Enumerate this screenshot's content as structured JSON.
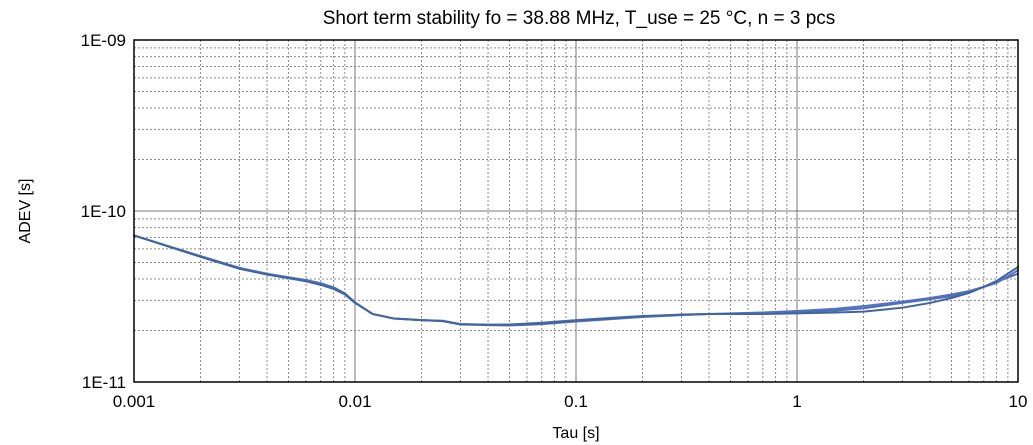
{
  "chart_data": {
    "type": "line",
    "title": "Short term stability fo = 38.88 MHz, T_use = 25 °C, n = 3 pcs",
    "xlabel": "Tau [s]",
    "ylabel": "ADEV [s]",
    "x_scale": "log",
    "y_scale": "log",
    "xlim": [
      0.001,
      10
    ],
    "ylim": [
      1e-11,
      1e-09
    ],
    "x_ticks": [
      {
        "value": 0.001,
        "label": "0.001"
      },
      {
        "value": 0.01,
        "label": "0.01"
      },
      {
        "value": 0.1,
        "label": "0.1"
      },
      {
        "value": 1,
        "label": "1"
      },
      {
        "value": 10,
        "label": "10"
      }
    ],
    "y_ticks": [
      {
        "value": 1e-11,
        "label": "1E-11"
      },
      {
        "value": 1e-10,
        "label": "1E-10"
      },
      {
        "value": 1e-09,
        "label": "1E-09"
      }
    ],
    "grid": true,
    "legend": "none",
    "colors": {
      "series_a": "#4a6fb8",
      "series_b": "#5272bf",
      "series_c": "#42649f",
      "grid_minor": "#8c8c8c",
      "grid_major": "#7a7a7a",
      "plot_border": "#000000"
    },
    "series": [
      {
        "x": [
          0.001,
          0.002,
          0.003,
          0.004,
          0.005,
          0.006,
          0.007,
          0.008,
          0.009,
          0.01,
          0.012,
          0.015,
          0.02,
          0.025,
          0.03,
          0.04,
          0.05,
          0.07,
          0.1,
          0.15,
          0.2,
          0.3,
          0.4,
          0.5,
          0.7,
          1,
          1.5,
          2,
          3,
          4,
          5,
          6,
          7,
          8,
          10
        ],
        "values": [
          7.2e-11,
          5.4e-11,
          4.6e-11,
          4.25e-11,
          4.05e-11,
          3.9e-11,
          3.7e-11,
          3.5e-11,
          3.25e-11,
          2.9e-11,
          2.5e-11,
          2.35e-11,
          2.3e-11,
          2.28e-11,
          2.18e-11,
          2.16e-11,
          2.17e-11,
          2.22e-11,
          2.3e-11,
          2.38e-11,
          2.43e-11,
          2.47e-11,
          2.5e-11,
          2.5e-11,
          2.52e-11,
          2.56e-11,
          2.62e-11,
          2.7e-11,
          2.9e-11,
          3.05e-11,
          3.18e-11,
          3.35e-11,
          3.6e-11,
          3.85e-11,
          4.3e-11
        ]
      },
      {
        "x": [
          0.001,
          0.002,
          0.003,
          0.004,
          0.005,
          0.006,
          0.007,
          0.008,
          0.009,
          0.01,
          0.012,
          0.015,
          0.02,
          0.025,
          0.03,
          0.04,
          0.05,
          0.07,
          0.1,
          0.15,
          0.2,
          0.3,
          0.4,
          0.5,
          0.7,
          1,
          1.5,
          2,
          3,
          4,
          5,
          6,
          7,
          8,
          10
        ],
        "values": [
          7.2e-11,
          5.45e-11,
          4.65e-11,
          4.3e-11,
          4.1e-11,
          3.95e-11,
          3.78e-11,
          3.58e-11,
          3.3e-11,
          2.92e-11,
          2.5e-11,
          2.35e-11,
          2.3e-11,
          2.27e-11,
          2.17e-11,
          2.15e-11,
          2.14e-11,
          2.18e-11,
          2.26e-11,
          2.34e-11,
          2.4e-11,
          2.46e-11,
          2.5e-11,
          2.52e-11,
          2.55e-11,
          2.6e-11,
          2.68e-11,
          2.78e-11,
          2.95e-11,
          3.1e-11,
          3.25e-11,
          3.4e-11,
          3.6e-11,
          3.8e-11,
          4.5e-11
        ]
      },
      {
        "x": [
          0.001,
          0.002,
          0.003,
          0.004,
          0.005,
          0.006,
          0.007,
          0.008,
          0.009,
          0.01,
          0.012,
          0.015,
          0.02,
          0.025,
          0.03,
          0.04,
          0.05,
          0.07,
          0.1,
          0.15,
          0.2,
          0.3,
          0.4,
          0.5,
          0.7,
          1,
          1.5,
          2,
          3,
          4,
          5,
          6,
          7,
          8,
          10
        ],
        "values": [
          7.2e-11,
          5.4e-11,
          4.6e-11,
          4.25e-11,
          4.05e-11,
          3.88e-11,
          3.7e-11,
          3.52e-11,
          3.28e-11,
          2.92e-11,
          2.5e-11,
          2.35e-11,
          2.3e-11,
          2.27e-11,
          2.18e-11,
          2.16e-11,
          2.16e-11,
          2.2e-11,
          2.28e-11,
          2.36e-11,
          2.42e-11,
          2.48e-11,
          2.5e-11,
          2.5e-11,
          2.5e-11,
          2.52e-11,
          2.55e-11,
          2.58e-11,
          2.72e-11,
          2.9e-11,
          3.1e-11,
          3.32e-11,
          3.6e-11,
          3.9e-11,
          4.7e-11
        ]
      }
    ]
  }
}
